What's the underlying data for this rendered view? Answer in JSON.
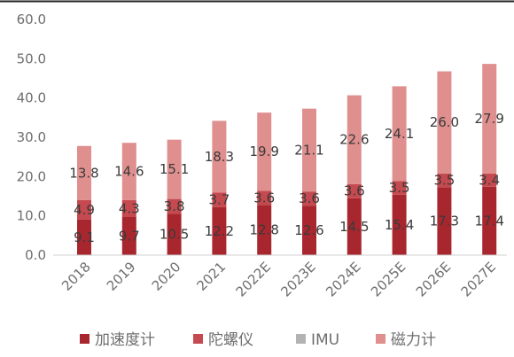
{
  "chart_data": {
    "type": "bar",
    "stacked": true,
    "categories": [
      "2018",
      "2019",
      "2020",
      "2021",
      "2022E",
      "2023E",
      "2024E",
      "2025E",
      "2026E",
      "2027E"
    ],
    "series": [
      {
        "name": "加速度计",
        "values": [
          9.1,
          9.7,
          10.5,
          12.2,
          12.8,
          12.6,
          14.5,
          15.4,
          17.3,
          17.4
        ],
        "labels": [
          "9.1",
          "9.7",
          "10.5",
          "12.2",
          "12.8",
          "12.6",
          "14.5",
          "15.4",
          "17.3",
          "17.4"
        ],
        "color": "#a8272f"
      },
      {
        "name": "陀螺仪",
        "values": [
          4.9,
          4.3,
          3.8,
          3.7,
          3.6,
          3.6,
          3.6,
          3.5,
          3.5,
          3.4
        ],
        "labels": [
          "4.9",
          "4.3",
          "3.8",
          "3.7",
          "3.6",
          "3.6",
          "3.6",
          "3.5",
          "3.5",
          "3.4"
        ],
        "color": "#c54a50"
      },
      {
        "name": "IMU",
        "values": [
          0,
          0,
          0,
          0,
          0,
          0,
          0,
          0,
          0,
          0
        ],
        "labels": [],
        "color": "#b3b3b3"
      },
      {
        "name": "磁力计",
        "values": [
          13.8,
          14.6,
          15.1,
          18.3,
          19.9,
          21.1,
          22.6,
          24.1,
          26.0,
          27.9
        ],
        "labels": [
          "13.8",
          "14.6",
          "15.1",
          "18.3",
          "19.9",
          "21.1",
          "22.6",
          "24.1",
          "26.0",
          "27.9"
        ],
        "color": "#e08f8f"
      }
    ],
    "ylim": [
      0,
      60
    ],
    "yticks": [
      "0.0",
      "10.0",
      "20.0",
      "30.0",
      "40.0",
      "50.0",
      "60.0"
    ],
    "grid": false,
    "legend": "bottom"
  }
}
